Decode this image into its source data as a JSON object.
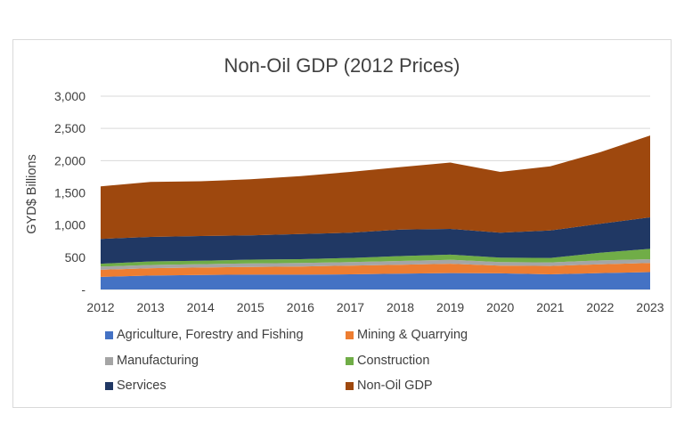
{
  "chart_data": {
    "type": "area",
    "stacked": true,
    "title": "Non-Oil GDP (2012 Prices)",
    "ylabel": "GYD$ Billions",
    "xlabel": "",
    "ylim": [
      0,
      3000
    ],
    "yticks": [
      0,
      500,
      1000,
      1500,
      2000,
      2500,
      3000
    ],
    "ytick_labels": [
      "-",
      "500",
      "1,000",
      "1,500",
      "2,000",
      "2,500",
      "3,000"
    ],
    "x": [
      "2012",
      "2013",
      "2014",
      "2015",
      "2016",
      "2017",
      "2018",
      "2019",
      "2020",
      "2021",
      "2022",
      "2023"
    ],
    "grid": true,
    "legend_position": "bottom",
    "series": [
      {
        "name": "Agriculture, Forestry and Fishing",
        "color": "#4472c4",
        "values": [
          195,
          215,
          225,
          230,
          230,
          235,
          245,
          255,
          250,
          235,
          255,
          270
        ]
      },
      {
        "name": "Mining & Quarrying",
        "color": "#ed7d31",
        "values": [
          110,
          115,
          115,
          120,
          125,
          135,
          140,
          145,
          120,
          130,
          135,
          140
        ]
      },
      {
        "name": "Manufacturing",
        "color": "#a5a5a5",
        "values": [
          50,
          50,
          52,
          55,
          55,
          55,
          58,
          60,
          55,
          55,
          60,
          60
        ]
      },
      {
        "name": "Construction",
        "color": "#70ad47",
        "values": [
          45,
          55,
          55,
          58,
          60,
          65,
          75,
          80,
          70,
          70,
          120,
          160
        ]
      },
      {
        "name": "Services",
        "color": "#203864",
        "values": [
          385,
          380,
          383,
          377,
          390,
          390,
          412,
          400,
          385,
          425,
          450,
          490
        ]
      },
      {
        "name": "Non-Oil GDP",
        "color": "#9e480e",
        "values": [
          815,
          855,
          850,
          870,
          900,
          945,
          970,
          1030,
          945,
          995,
          1110,
          1270
        ]
      }
    ]
  }
}
